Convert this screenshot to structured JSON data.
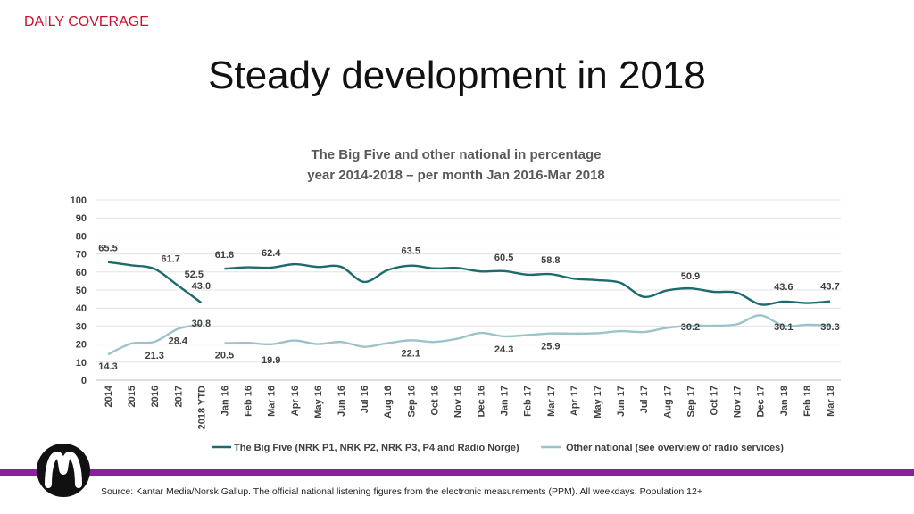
{
  "header": {
    "kicker": "DAILY COVERAGE",
    "title": "Steady development in 2018"
  },
  "footer": {
    "source": "Source: Kantar Media/Norsk Gallup. The official national listening figures from the electronic measurements (PPM). All weekdays. Population 12+"
  },
  "logo": {
    "icon": "nrk-logo-icon"
  },
  "colors": {
    "big_five": "#1e6b6e",
    "other": "#9cc3c8",
    "accent_bar": "#8b1f9e",
    "kicker": "#c8102e"
  },
  "chart_data": {
    "type": "line",
    "title": "The Big Five and other national in percentage",
    "subtitle": "year 2014-2018 – per month Jan 2016-Mar 2018",
    "ylim": [
      0,
      100
    ],
    "yticks": [
      0,
      10,
      20,
      30,
      40,
      50,
      60,
      70,
      80,
      90,
      100
    ],
    "grid": true,
    "legend_position": "bottom",
    "categories": [
      "2014",
      "2015",
      "2016",
      "2017",
      "2018 YTD",
      "Jan 16",
      "Feb 16",
      "Mar 16",
      "Apr 16",
      "May 16",
      "Jun 16",
      "Jul 16",
      "Aug 16",
      "Sep 16",
      "Oct 16",
      "Nov 16",
      "Dec 16",
      "Jan 17",
      "Feb 17",
      "Mar 17",
      "Apr 17",
      "May 17",
      "Jun 17",
      "Jul 17",
      "Aug 17",
      "Sep 17",
      "Oct 17",
      "Nov 17",
      "Dec 17",
      "Jan 18",
      "Feb 18",
      "Mar 18"
    ],
    "segments": [
      [
        0,
        4
      ],
      [
        5,
        31
      ]
    ],
    "series": [
      {
        "name": "The Big Five (NRK P1, NRK P2, NRK P3, P4 and Radio Norge)",
        "color": "#1e6b6e",
        "values": [
          65.5,
          63.7,
          61.7,
          52.5,
          43.0,
          61.8,
          62.6,
          62.4,
          64.3,
          62.8,
          62.9,
          54.5,
          61.0,
          63.5,
          62.0,
          62.2,
          60.3,
          60.5,
          58.5,
          58.8,
          56.3,
          55.5,
          54.0,
          46.2,
          49.8,
          50.9,
          49.0,
          48.5,
          42.0,
          43.6,
          42.8,
          43.7
        ],
        "labels": {
          "0": "65.5",
          "2": "61.7",
          "3": "52.5",
          "4": "43.0",
          "5": "61.8",
          "7": "62.4",
          "13": "63.5",
          "17": "60.5",
          "19": "58.8",
          "25": "50.9",
          "29": "43.6",
          "31": "43.7"
        }
      },
      {
        "name": "Other national (see overview of radio services)",
        "color": "#9cc3c8",
        "values": [
          14.3,
          20.3,
          21.3,
          28.4,
          30.8,
          20.5,
          20.7,
          19.9,
          22.0,
          20.0,
          21.2,
          18.5,
          20.5,
          22.1,
          21.2,
          23.0,
          26.2,
          24.3,
          25.0,
          25.9,
          25.8,
          26.0,
          27.2,
          26.7,
          29.0,
          30.2,
          30.2,
          31.0,
          36.0,
          30.1,
          30.7,
          30.3
        ],
        "labels": {
          "0": "14.3",
          "2": "21.3",
          "3": "28.4",
          "4": "30.8",
          "5": "20.5",
          "7": "19.9",
          "13": "22.1",
          "17": "24.3",
          "19": "25.9",
          "25": "30.2",
          "29": "30.1",
          "31": "30.3"
        }
      }
    ]
  }
}
